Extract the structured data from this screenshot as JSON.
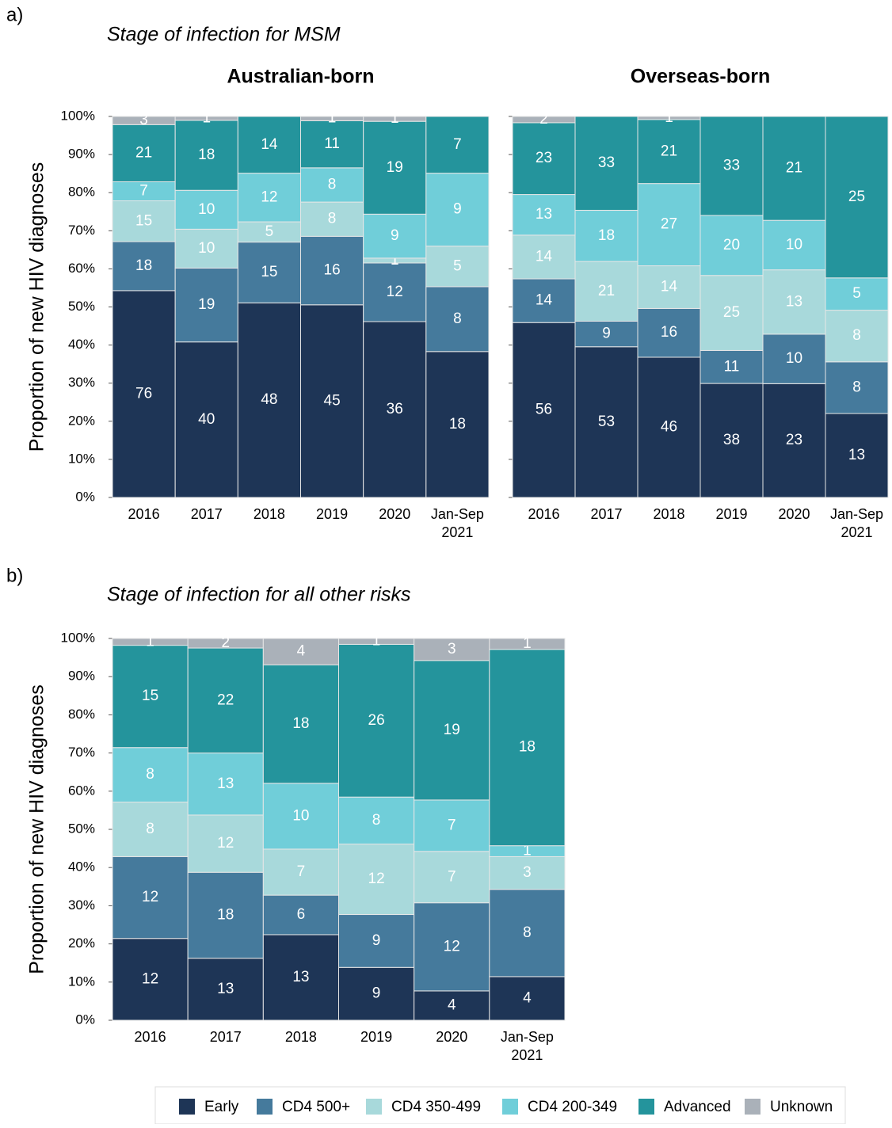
{
  "chart_data": [
    {
      "type": "bar",
      "stacked": "percent",
      "panel": "a)",
      "title": "Stage of infection for MSM",
      "subtitle": "Australian-born",
      "ylabel": "Proportion of new HIV diagnoses",
      "categories": [
        "2016",
        "2017",
        "2018",
        "2019",
        "2020",
        "Jan-Sep\n2021"
      ],
      "ylim": [
        0,
        100
      ],
      "yticks": [
        {
          "value": 0,
          "label": "0%"
        },
        {
          "value": 10,
          "label": "10%"
        },
        {
          "value": 20,
          "label": "20%"
        },
        {
          "value": 30,
          "label": "30%"
        },
        {
          "value": 40,
          "label": "40%"
        },
        {
          "value": 50,
          "label": "50%"
        },
        {
          "value": 60,
          "label": "60%"
        },
        {
          "value": 70,
          "label": "70%"
        },
        {
          "value": 80,
          "label": "80%"
        },
        {
          "value": 90,
          "label": "90%"
        },
        {
          "value": 100,
          "label": "100%"
        }
      ],
      "series": [
        {
          "color": "#1e3556",
          "values": [
            76,
            40,
            48,
            45,
            36,
            18
          ]
        },
        {
          "color": "#457a9c",
          "values": [
            18,
            19,
            15,
            16,
            12,
            8
          ]
        },
        {
          "color": "#a8d9db",
          "values": [
            15,
            10,
            5,
            8,
            1,
            5
          ]
        },
        {
          "color": "#70ced9",
          "values": [
            7,
            10,
            12,
            8,
            9,
            9
          ]
        },
        {
          "color": "#24949c",
          "values": [
            21,
            18,
            14,
            11,
            19,
            7
          ]
        },
        {
          "color": "#aab1b9",
          "values": [
            3,
            1,
            null,
            1,
            1,
            null
          ]
        }
      ]
    },
    {
      "type": "bar",
      "stacked": "percent",
      "subtitle": "Overseas-born",
      "categories": [
        "2016",
        "2017",
        "2018",
        "2019",
        "2020",
        "Jan-Sep\n2021"
      ],
      "ylim": [
        0,
        100
      ],
      "yticks": [
        0,
        10,
        20,
        30,
        40,
        50,
        60,
        70,
        80,
        90,
        100
      ],
      "series": [
        {
          "color": "#1e3556",
          "values": [
            56,
            53,
            46,
            38,
            23,
            13
          ]
        },
        {
          "color": "#457a9c",
          "values": [
            14,
            9,
            16,
            11,
            10,
            8
          ]
        },
        {
          "color": "#a8d9db",
          "values": [
            14,
            21,
            14,
            25,
            13,
            8
          ]
        },
        {
          "color": "#70ced9",
          "values": [
            13,
            18,
            27,
            20,
            10,
            5
          ]
        },
        {
          "color": "#24949c",
          "values": [
            23,
            33,
            21,
            33,
            21,
            25
          ]
        },
        {
          "color": "#aab1b9",
          "values": [
            2,
            null,
            1,
            null,
            null,
            null
          ]
        }
      ]
    },
    {
      "type": "bar",
      "stacked": "percent",
      "panel": "b)",
      "title": "Stage of infection for all other risks",
      "ylabel": "Proportion of new HIV diagnoses",
      "categories": [
        "2016",
        "2017",
        "2018",
        "2019",
        "2020",
        "Jan-Sep\n2021"
      ],
      "ylim": [
        0,
        100
      ],
      "yticks": [
        {
          "value": 0,
          "label": "0%"
        },
        {
          "value": 10,
          "label": "10%"
        },
        {
          "value": 20,
          "label": "20%"
        },
        {
          "value": 30,
          "label": "30%"
        },
        {
          "value": 40,
          "label": "40%"
        },
        {
          "value": 50,
          "label": "50%"
        },
        {
          "value": 60,
          "label": "60%"
        },
        {
          "value": 70,
          "label": "70%"
        },
        {
          "value": 80,
          "label": "80%"
        },
        {
          "value": 90,
          "label": "90%"
        },
        {
          "value": 100,
          "label": "100%"
        }
      ],
      "series": [
        {
          "name": "Early",
          "color": "#1e3556",
          "values": [
            12,
            13,
            13,
            9,
            4,
            4
          ]
        },
        {
          "name": "CD4 500+",
          "color": "#457a9c",
          "values": [
            12,
            18,
            6,
            9,
            12,
            8
          ]
        },
        {
          "name": "CD4 350-499",
          "color": "#a8d9db",
          "values": [
            8,
            12,
            7,
            12,
            7,
            3
          ]
        },
        {
          "name": "CD4 200-349",
          "color": "#70ced9",
          "values": [
            8,
            13,
            10,
            8,
            7,
            1
          ]
        },
        {
          "name": "Advanced",
          "color": "#24949c",
          "values": [
            15,
            22,
            18,
            26,
            19,
            18
          ]
        },
        {
          "name": "Unknown",
          "color": "#aab1b9",
          "values": [
            1,
            2,
            4,
            1,
            3,
            1
          ]
        }
      ]
    }
  ]
}
